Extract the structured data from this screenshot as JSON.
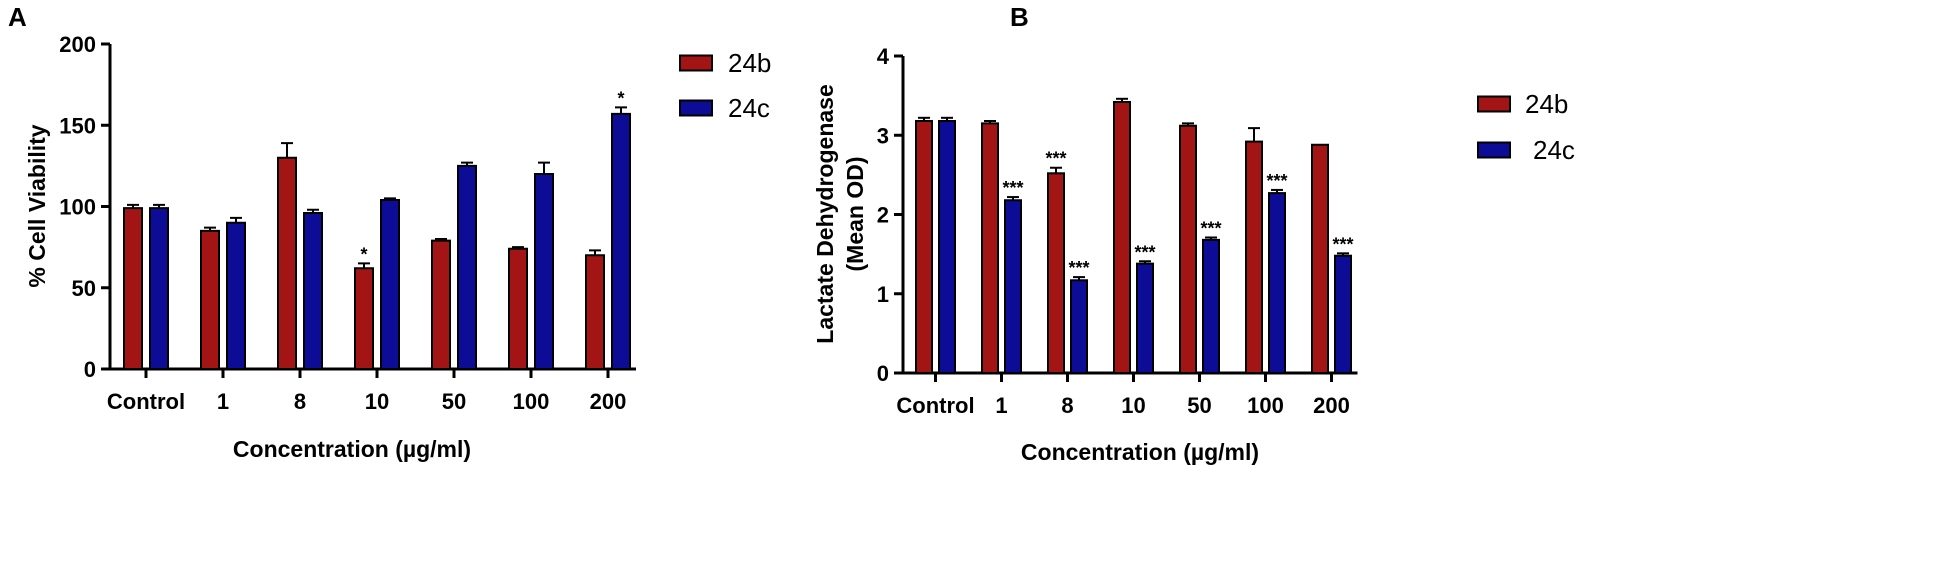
{
  "chart_data": [
    {
      "panel": "A",
      "type": "bar",
      "xlabel": "Concentration (µg/ml)",
      "ylabel": "% Cell Viability",
      "ylim": [
        0,
        200
      ],
      "yticks": [
        "0",
        "50",
        "100",
        "150",
        "200"
      ],
      "categories": [
        "Control",
        "1",
        "8",
        "10",
        "50",
        "100",
        "200"
      ],
      "series": [
        {
          "name": "24b",
          "color": "#a31515",
          "values": [
            99,
            85,
            130,
            62,
            79,
            74,
            70
          ],
          "errors": [
            2,
            2,
            9,
            3,
            1,
            1,
            3
          ],
          "significance": [
            "",
            "",
            "",
            "*",
            "",
            "",
            ""
          ]
        },
        {
          "name": "24c",
          "color": "#0c0c96",
          "values": [
            99,
            90,
            96,
            104,
            125,
            120,
            157
          ],
          "errors": [
            2,
            3,
            2,
            1,
            2,
            7,
            4
          ],
          "significance": [
            "",
            "",
            "",
            "",
            "",
            "",
            "*"
          ]
        }
      ],
      "legend_position": "right"
    },
    {
      "panel": "B",
      "type": "bar",
      "xlabel": "Concentration (µg/ml)",
      "ylabel_line1": "Lactate Dehydrogenase",
      "ylabel_line2": "(Mean OD)",
      "ylim": [
        0,
        4
      ],
      "yticks": [
        "0",
        "1",
        "2",
        "3",
        "4"
      ],
      "categories": [
        "Control",
        "1",
        "8",
        "10",
        "50",
        "100",
        "200"
      ],
      "series": [
        {
          "name": "24b",
          "color": "#a31515",
          "values": [
            3.18,
            3.15,
            2.52,
            3.42,
            3.12,
            2.92,
            2.88
          ],
          "errors": [
            0.04,
            0.03,
            0.07,
            0.04,
            0.03,
            0.17,
            0.0
          ],
          "significance": [
            "",
            "",
            "***",
            "",
            "",
            "",
            ""
          ]
        },
        {
          "name": "24c",
          "color": "#0c0c96",
          "values": [
            3.18,
            2.18,
            1.17,
            1.38,
            1.68,
            2.27,
            1.48
          ],
          "errors": [
            0.04,
            0.04,
            0.04,
            0.03,
            0.03,
            0.04,
            0.03
          ],
          "significance": [
            "",
            "***",
            "***",
            "***",
            "***",
            "***",
            "***"
          ]
        }
      ],
      "legend_position": "right"
    }
  ]
}
